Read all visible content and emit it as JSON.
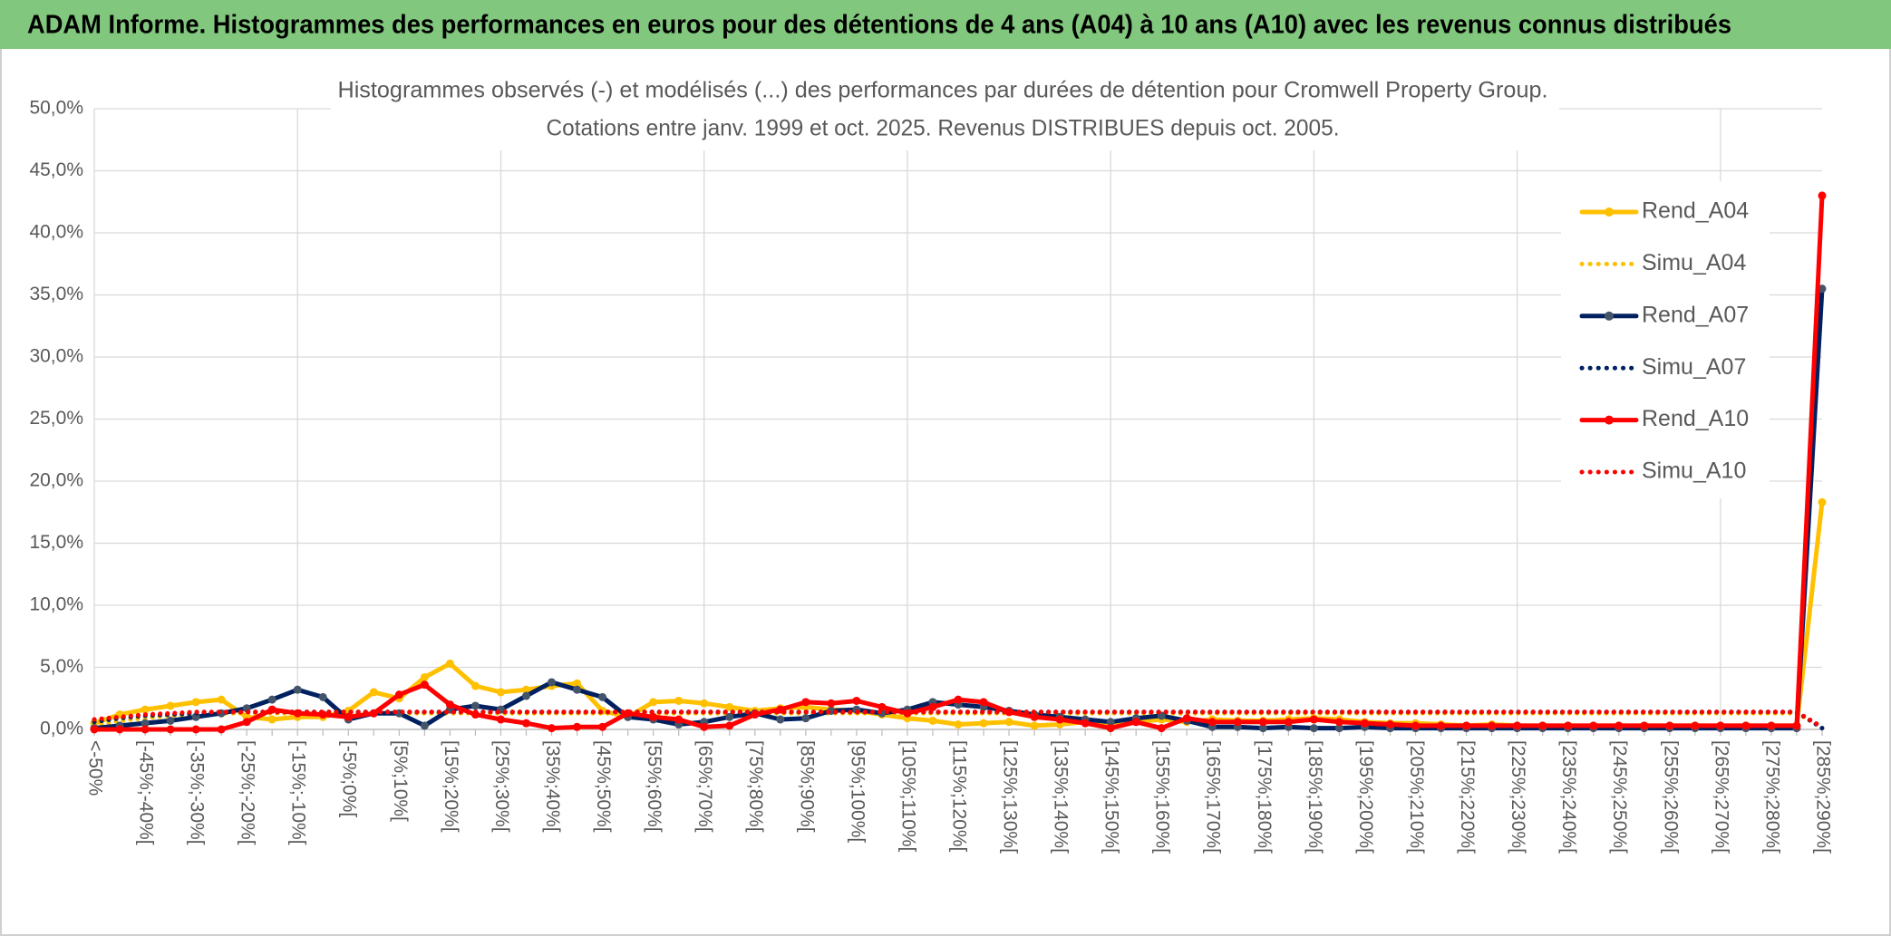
{
  "banner": "ADAM Informe. Histogrammes des performances en euros pour des détentions de 4 ans (A04) à 10 ans (A10) avec les revenus connus distribués",
  "chart_data": {
    "type": "line",
    "title": "Histogrammes observés (-) et modélisés (...) des performances par durées de détention pour Cromwell Property Group.",
    "subtitle": "Cotations entre janv. 1999 et oct. 2025. Revenus DISTRIBUES depuis oct. 2005.",
    "categories": [
      "<-50%",
      null,
      "[-45%;-40%[",
      null,
      "[-35%;-30%[",
      null,
      "[-25%;-20%[",
      null,
      "[-15%;-10%[",
      null,
      "[-5%;0%[",
      null,
      "[5%;10%[",
      null,
      "[15%;20%[",
      null,
      "[25%;30%[",
      null,
      "[35%;40%[",
      null,
      "[45%;50%[",
      null,
      "[55%;60%[",
      null,
      "[65%;70%[",
      null,
      "[75%;80%[",
      null,
      "[85%;90%[",
      null,
      "[95%;100%[",
      null,
      "[105%;110%[",
      null,
      "[115%;120%[",
      null,
      "[125%;130%[",
      null,
      "[135%;140%[",
      null,
      "[145%;150%[",
      null,
      "[155%;160%[",
      null,
      "[165%;170%[",
      null,
      "[175%;180%[",
      null,
      "[185%;190%[",
      null,
      "[195%;200%[",
      null,
      "[205%;210%[",
      null,
      "[215%;220%[",
      null,
      "[225%;230%[",
      null,
      "[235%;240%[",
      null,
      "[245%;250%[",
      null,
      "[255%;260%[",
      null,
      "[265%;270%[",
      null,
      "[275%;280%[",
      null,
      "[285%;290%["
    ],
    "series": [
      {
        "name": "Rend_A04",
        "color": "#ffc000",
        "style": "solid",
        "values": [
          0.5,
          1.2,
          1.6,
          1.9,
          2.2,
          2.4,
          1.0,
          0.8,
          1.0,
          1.0,
          1.5,
          3.0,
          2.5,
          4.2,
          5.3,
          3.5,
          3.0,
          3.2,
          3.5,
          3.7,
          1.5,
          1.0,
          2.2,
          2.3,
          2.1,
          1.8,
          1.5,
          1.7,
          1.8,
          1.6,
          1.5,
          1.2,
          0.9,
          0.7,
          0.4,
          0.5,
          0.6,
          0.3,
          0.4,
          0.6,
          0.4,
          0.6,
          0.8,
          0.6,
          0.8,
          0.7,
          0.7,
          0.8,
          0.9,
          0.8,
          0.6,
          0.5,
          0.5,
          0.4,
          0.3,
          0.4,
          0.3,
          0.3,
          0.3,
          0.3,
          0.3,
          0.3,
          0.3,
          0.3,
          0.3,
          0.3,
          0.3,
          0.3,
          18.3
        ]
      },
      {
        "name": "Simu_A04",
        "color": "#ffc000",
        "style": "dotted",
        "values": [
          0.3,
          0.7,
          0.9,
          1.1,
          1.2,
          1.3,
          1.3,
          1.3,
          1.3,
          1.3,
          1.3,
          1.3,
          1.3,
          1.3,
          1.3,
          1.3,
          1.3,
          1.3,
          1.3,
          1.3,
          1.3,
          1.3,
          1.3,
          1.3,
          1.3,
          1.3,
          1.3,
          1.3,
          1.3,
          1.3,
          1.3,
          1.3,
          1.3,
          1.3,
          1.3,
          1.3,
          1.3,
          1.3,
          1.3,
          1.3,
          1.3,
          1.3,
          1.3,
          1.3,
          1.3,
          1.3,
          1.3,
          1.3,
          1.3,
          1.3,
          1.3,
          1.3,
          1.3,
          1.3,
          1.3,
          1.3,
          1.3,
          1.3,
          1.3,
          1.3,
          1.3,
          1.3,
          1.3,
          1.3,
          1.3,
          1.3,
          1.3,
          1.3,
          0.2
        ]
      },
      {
        "name": "Rend_A07",
        "color": "#002060",
        "marker": "#44546a",
        "style": "solid",
        "values": [
          0.1,
          0.3,
          0.5,
          0.7,
          1.0,
          1.3,
          1.7,
          2.4,
          3.2,
          2.6,
          0.8,
          1.3,
          1.3,
          0.3,
          1.6,
          1.9,
          1.6,
          2.7,
          3.8,
          3.2,
          2.6,
          1.0,
          0.8,
          0.4,
          0.6,
          1.0,
          1.3,
          0.8,
          0.9,
          1.5,
          1.6,
          1.3,
          1.6,
          2.2,
          2.0,
          1.8,
          1.5,
          1.2,
          1.0,
          0.8,
          0.6,
          0.9,
          1.1,
          0.7,
          0.2,
          0.2,
          0.1,
          0.2,
          0.1,
          0.1,
          0.2,
          0.1,
          0.1,
          0.1,
          0.1,
          0.1,
          0.1,
          0.1,
          0.1,
          0.1,
          0.1,
          0.1,
          0.1,
          0.1,
          0.1,
          0.1,
          0.1,
          0.1,
          35.5
        ]
      },
      {
        "name": "Simu_A07",
        "color": "#002060",
        "style": "dotted",
        "values": [
          0.6,
          0.9,
          1.1,
          1.2,
          1.3,
          1.4,
          1.4,
          1.4,
          1.4,
          1.4,
          1.4,
          1.4,
          1.4,
          1.4,
          1.4,
          1.4,
          1.4,
          1.4,
          1.4,
          1.4,
          1.4,
          1.4,
          1.4,
          1.4,
          1.4,
          1.4,
          1.4,
          1.4,
          1.4,
          1.4,
          1.4,
          1.4,
          1.4,
          1.4,
          1.4,
          1.4,
          1.4,
          1.4,
          1.4,
          1.4,
          1.4,
          1.4,
          1.4,
          1.4,
          1.4,
          1.4,
          1.4,
          1.4,
          1.4,
          1.4,
          1.4,
          1.4,
          1.4,
          1.4,
          1.4,
          1.4,
          1.4,
          1.4,
          1.4,
          1.4,
          1.4,
          1.4,
          1.4,
          1.4,
          1.4,
          1.4,
          1.4,
          1.4,
          0.1
        ]
      },
      {
        "name": "Rend_A10",
        "color": "#ff0000",
        "style": "solid",
        "values": [
          0,
          0,
          0,
          0,
          0,
          0,
          0.6,
          1.6,
          1.3,
          1.2,
          1.0,
          1.3,
          2.8,
          3.6,
          2.0,
          1.2,
          0.8,
          0.5,
          0.1,
          0.2,
          0.2,
          1.3,
          1.0,
          0.8,
          0.2,
          0.3,
          1.2,
          1.6,
          2.2,
          2.1,
          2.3,
          1.8,
          1.3,
          1.8,
          2.4,
          2.2,
          1.4,
          1.0,
          0.8,
          0.5,
          0.1,
          0.6,
          0.1,
          0.9,
          0.6,
          0.6,
          0.6,
          0.6,
          0.8,
          0.6,
          0.5,
          0.4,
          0.3,
          0.3,
          0.3,
          0.3,
          0.3,
          0.3,
          0.3,
          0.3,
          0.3,
          0.3,
          0.3,
          0.3,
          0.3,
          0.3,
          0.3,
          0.3,
          43.0
        ]
      },
      {
        "name": "Simu_A10",
        "color": "#ff0000",
        "style": "dotted",
        "values": [
          0.8,
          1.0,
          1.2,
          1.3,
          1.4,
          1.4,
          1.4,
          1.4,
          1.4,
          1.4,
          1.4,
          1.4,
          1.4,
          1.4,
          1.4,
          1.4,
          1.4,
          1.4,
          1.4,
          1.4,
          1.4,
          1.4,
          1.4,
          1.4,
          1.4,
          1.4,
          1.4,
          1.4,
          1.4,
          1.4,
          1.4,
          1.4,
          1.4,
          1.4,
          1.4,
          1.4,
          1.4,
          1.4,
          1.4,
          1.4,
          1.4,
          1.4,
          1.4,
          1.4,
          1.4,
          1.4,
          1.4,
          1.4,
          1.4,
          1.4,
          1.4,
          1.4,
          1.4,
          1.4,
          1.4,
          1.4,
          1.4,
          1.4,
          1.4,
          1.4,
          1.4,
          1.4,
          1.4,
          1.4,
          1.4,
          1.4,
          1.4,
          1.4,
          0.2
        ]
      }
    ],
    "ylim": [
      0,
      50
    ],
    "yticks": [
      {
        "value": 0,
        "label": "0,0%"
      },
      {
        "value": 5,
        "label": "5,0%"
      },
      {
        "value": 10,
        "label": "10,0%"
      },
      {
        "value": 15,
        "label": "15,0%"
      },
      {
        "value": 20,
        "label": "20,0%"
      },
      {
        "value": 25,
        "label": "25,0%"
      },
      {
        "value": 30,
        "label": "30,0%"
      },
      {
        "value": 35,
        "label": "35,0%"
      },
      {
        "value": 40,
        "label": "40,0%"
      },
      {
        "value": 45,
        "label": "45,0%"
      },
      {
        "value": 50,
        "label": "50,0%"
      }
    ],
    "grid": true,
    "legend": "right"
  }
}
